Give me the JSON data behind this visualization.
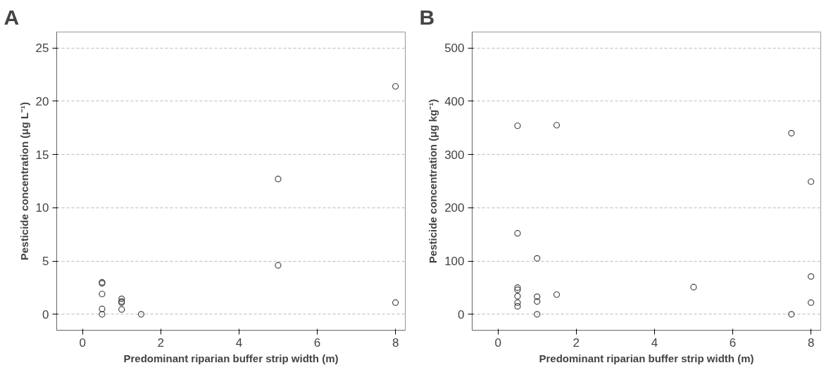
{
  "chart_data": [
    {
      "type": "scatter",
      "title": "A",
      "xlabel": "Predominant riparian buffer strip width (m)",
      "ylabel": "Pesticide concentration (μg L⁻¹)",
      "xlim": [
        -0.66,
        8.25
      ],
      "ylim": [
        -1.5,
        26.5
      ],
      "xticks": [
        0,
        2,
        4,
        6,
        8
      ],
      "yticks": [
        0,
        5,
        10,
        15,
        20,
        25
      ],
      "grid": "y",
      "marker": "circle",
      "series": [
        {
          "color": "#444444",
          "x": [
            0.5,
            0.5,
            0.5,
            0.5,
            0.5,
            1,
            1,
            1,
            1,
            1.5,
            5,
            5,
            8,
            8
          ],
          "values": [
            2.9,
            3.0,
            1.9,
            0.5,
            0.0,
            1.45,
            1.2,
            1.1,
            0.45,
            0.0,
            12.7,
            4.6,
            21.4,
            1.1
          ]
        }
      ]
    },
    {
      "type": "scatter",
      "title": "B",
      "xlabel": "Predominant riparian buffer strip width (m)",
      "ylabel": "Pesticide concentration (μg kg⁻¹)",
      "xlim": [
        -0.66,
        8.25
      ],
      "ylim": [
        -30,
        530
      ],
      "xticks": [
        0,
        2,
        4,
        6,
        8
      ],
      "yticks": [
        0,
        100,
        200,
        300,
        400,
        500
      ],
      "grid": "y",
      "marker": "circle",
      "series": [
        {
          "color": "#444444",
          "x": [
            0.5,
            0.5,
            0.5,
            0.5,
            0.5,
            0.5,
            0.5,
            1,
            1,
            1,
            1,
            1.5,
            1.5,
            5,
            7.5,
            7.5,
            8,
            8,
            8
          ],
          "values": [
            354,
            152,
            50,
            46,
            34,
            22,
            15,
            105,
            33,
            24,
            0,
            355,
            37,
            51,
            340,
            0,
            249,
            71,
            22
          ]
        }
      ]
    }
  ]
}
